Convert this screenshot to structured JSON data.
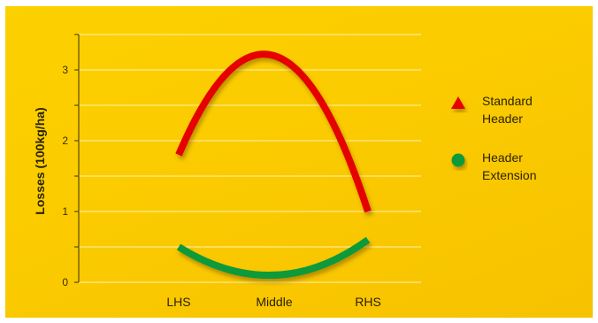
{
  "chart_data": {
    "type": "line",
    "ylabel": "Losses (100kg/ha)",
    "xlabel": "",
    "categories": [
      "LHS",
      "Middle",
      "RHS"
    ],
    "ylim": [
      0,
      3.5
    ],
    "yticks": [
      "0",
      "1",
      "2",
      "3"
    ],
    "grid": true,
    "legend_position": "right",
    "series": [
      {
        "name": "Standard Header",
        "values": [
          1.8,
          3.2,
          1.0
        ],
        "color": "#e60000",
        "marker": "triangle"
      },
      {
        "name": "Header Extension",
        "values": [
          0.5,
          0.1,
          0.6
        ],
        "color": "#0f9a3a",
        "marker": "circle"
      }
    ]
  }
}
